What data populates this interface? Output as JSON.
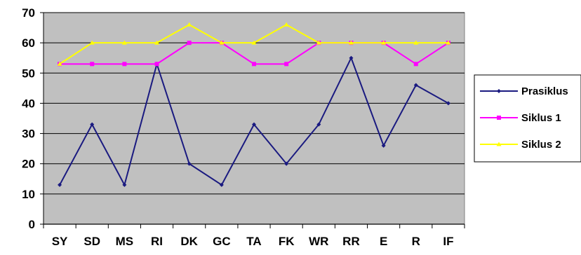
{
  "chart_data": {
    "type": "line",
    "categories": [
      "SY",
      "SD",
      "MS",
      "RI",
      "DK",
      "GC",
      "TA",
      "FK",
      "WR",
      "RR",
      "E",
      "R",
      "IF"
    ],
    "series": [
      {
        "name": "Prasiklus",
        "values": [
          13,
          33,
          13,
          53,
          20,
          13,
          33,
          20,
          33,
          55,
          26,
          46,
          40
        ],
        "color": "#1a1a80",
        "marker": "diamond"
      },
      {
        "name": "Siklus 1",
        "values": [
          53,
          53,
          53,
          53,
          60,
          60,
          53,
          53,
          60,
          60,
          60,
          53,
          60
        ],
        "color": "#ff00ff",
        "marker": "square"
      },
      {
        "name": "Siklus 2",
        "values": [
          53,
          60,
          60,
          60,
          66,
          60,
          60,
          66,
          60,
          60,
          60,
          60,
          60
        ],
        "color": "#ffff00",
        "marker": "triangle"
      }
    ],
    "yticks": [
      0,
      10,
      20,
      30,
      40,
      50,
      60,
      70
    ],
    "ylim": [
      0,
      70
    ],
    "grid": true,
    "plot_background": "#c0c0c0",
    "legend_position": "right"
  }
}
